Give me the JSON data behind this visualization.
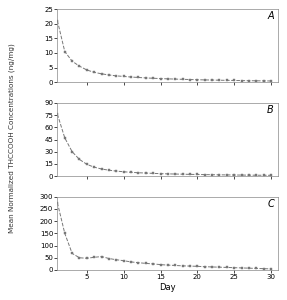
{
  "ylabel": "Mean Normalized THCCOOH Concentrations (ng/mg)",
  "xlabel": "Day",
  "panel_A": {
    "ylim": [
      0,
      25
    ],
    "yticks": [
      0,
      5,
      10,
      15,
      20,
      25
    ],
    "values": [
      21.0,
      10.5,
      7.2,
      5.5,
      4.2,
      3.4,
      2.9,
      2.5,
      2.2,
      2.0,
      1.8,
      1.65,
      1.5,
      1.38,
      1.28,
      1.18,
      1.1,
      1.02,
      0.95,
      0.88,
      0.82,
      0.77,
      0.72,
      0.67,
      0.63,
      0.59,
      0.55,
      0.52,
      0.49,
      0.46
    ]
  },
  "panel_B": {
    "ylim": [
      0,
      90
    ],
    "yticks": [
      0,
      15,
      30,
      45,
      60,
      75,
      90
    ],
    "values": [
      76.0,
      47.0,
      30.0,
      20.5,
      14.5,
      11.0,
      8.8,
      7.3,
      6.2,
      5.4,
      4.7,
      4.2,
      3.8,
      3.4,
      3.1,
      2.8,
      2.6,
      2.4,
      2.2,
      2.05,
      1.9,
      1.76,
      1.64,
      1.53,
      1.43,
      1.34,
      1.25,
      1.17,
      1.1,
      1.03
    ]
  },
  "panel_C": {
    "ylim": [
      0,
      300
    ],
    "yticks": [
      0,
      50,
      100,
      150,
      200,
      250,
      300
    ],
    "values": [
      275.0,
      150.0,
      68.0,
      50.0,
      48.0,
      52.0,
      55.0,
      47.0,
      42.0,
      38.0,
      33.0,
      30.0,
      27.0,
      25.0,
      22.0,
      20.0,
      18.5,
      17.0,
      16.0,
      15.0,
      13.5,
      12.5,
      11.5,
      10.5,
      9.5,
      8.5,
      7.5,
      6.5,
      5.5,
      4.5
    ]
  },
  "days": [
    1,
    2,
    3,
    4,
    5,
    6,
    7,
    8,
    9,
    10,
    11,
    12,
    13,
    14,
    15,
    16,
    17,
    18,
    19,
    20,
    21,
    22,
    23,
    24,
    25,
    26,
    27,
    28,
    29,
    30
  ],
  "line_color": "#777777",
  "marker": "s",
  "markersize": 1.8,
  "linewidth": 0.7,
  "linestyle": "--",
  "background_color": "#ffffff",
  "xticks": [
    5,
    10,
    15,
    20,
    25,
    30
  ],
  "panel_label_fontsize": 7,
  "tick_labelsize": 5,
  "ylabel_fontsize": 5.2,
  "xlabel_fontsize": 6
}
